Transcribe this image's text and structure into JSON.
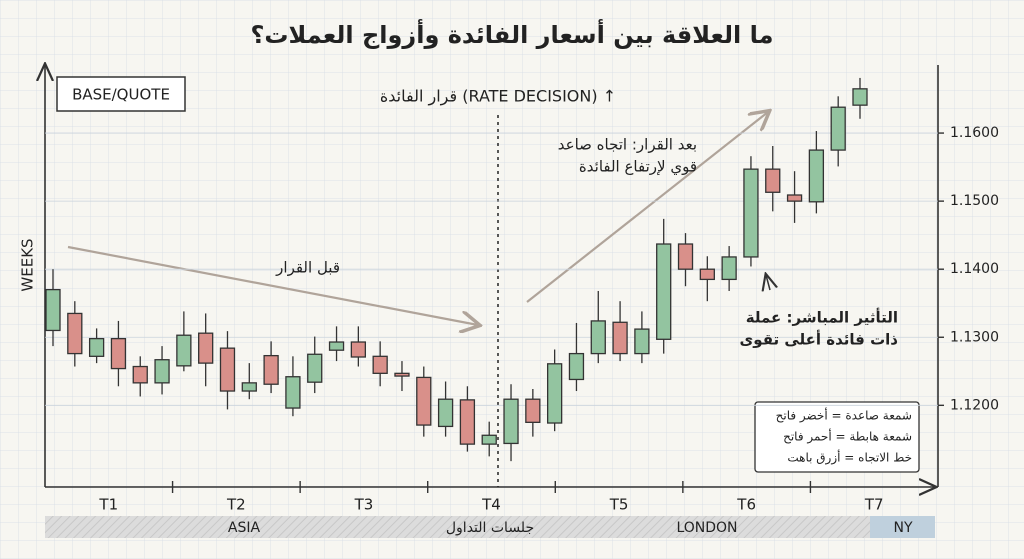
{
  "chart_data": {
    "type": "candlestick",
    "title": "ما العلاقة بين أسعار الفائدة وأزواج العملات؟",
    "pair_label": "BASE/QUOTE",
    "x_axis_label": "WEEKS",
    "decision_label": "قرار الفائدة (RATE DECISION) ↑",
    "annotations": [
      {
        "lines": [
          "قبل القرار"
        ]
      },
      {
        "lines": [
          "بعد القرار: اتجاه صاعد",
          "قوي لإرتفاع الفائدة"
        ]
      },
      {
        "lines": [
          "التأثير المباشر: عملة",
          "ذات فائدة أعلى تقوى"
        ]
      }
    ],
    "legend_lines": [
      "شمعة صاعدة = أخضر فاتح",
      "شمعة هابطة = أحمر فاتح",
      "خط الاتجاه = أزرق باهت"
    ],
    "period_labels": [
      "T1",
      "T2",
      "T3",
      "T4",
      "T5",
      "T6",
      "T7"
    ],
    "sessions": [
      "ASIA",
      "جلسات التداول",
      "LONDON",
      "NY"
    ],
    "up_color": "#93c4a0",
    "down_color": "#d9908a",
    "open": [
      1.131,
      1.1335,
      1.1272,
      1.1298,
      1.1257,
      1.1233,
      1.1258,
      1.1306,
      1.1284,
      1.1221,
      1.1273,
      1.1196,
      1.1234,
      1.1281,
      1.1293,
      1.1272,
      1.1247,
      1.1241,
      1.1169,
      1.1208,
      1.1143,
      1.1144,
      1.1209,
      1.1174,
      1.1238,
      1.1276,
      1.1322,
      1.1276,
      1.1297,
      1.1437,
      1.14,
      1.1385,
      1.1418,
      1.1547,
      1.1509,
      1.1499,
      1.1575,
      1.1641
    ],
    "high": [
      1.14,
      1.1353,
      1.1313,
      1.1324,
      1.1272,
      1.1287,
      1.1338,
      1.1335,
      1.1309,
      1.1262,
      1.1294,
      1.1272,
      1.1301,
      1.1316,
      1.1316,
      1.1294,
      1.1265,
      1.1257,
      1.1235,
      1.1228,
      1.1176,
      1.1231,
      1.1224,
      1.1282,
      1.1321,
      1.1368,
      1.1353,
      1.1338,
      1.1474,
      1.1453,
      1.1419,
      1.1434,
      1.1566,
      1.1581,
      1.1544,
      1.1603,
      1.1654,
      1.1681
    ],
    "low": [
      1.1287,
      1.1257,
      1.1262,
      1.1228,
      1.1213,
      1.1216,
      1.125,
      1.1228,
      1.1194,
      1.1209,
      1.1218,
      1.1184,
      1.1218,
      1.1265,
      1.1257,
      1.1228,
      1.1221,
      1.1154,
      1.1154,
      1.1132,
      1.1125,
      1.1118,
      1.1154,
      1.1162,
      1.1221,
      1.1262,
      1.1265,
      1.1262,
      1.1276,
      1.1375,
      1.1353,
      1.1368,
      1.1404,
      1.1485,
      1.1468,
      1.1482,
      1.1551,
      1.1621
    ],
    "close": [
      1.137,
      1.1276,
      1.1298,
      1.1254,
      1.1233,
      1.1267,
      1.1303,
      1.1262,
      1.1221,
      1.1233,
      1.1231,
      1.1242,
      1.1275,
      1.1293,
      1.1271,
      1.1247,
      1.1243,
      1.1171,
      1.1209,
      1.1143,
      1.1156,
      1.1209,
      1.1175,
      1.1261,
      1.1276,
      1.1324,
      1.1276,
      1.1312,
      1.1437,
      1.14,
      1.1385,
      1.1418,
      1.1547,
      1.1513,
      1.15,
      1.1575,
      1.1638,
      1.1665
    ],
    "ylim": [
      1.108,
      1.17
    ],
    "yticks": [
      {
        "value": 1.12,
        "label": "1.1200"
      },
      {
        "value": 1.13,
        "label": "1.1300"
      },
      {
        "value": 1.14,
        "label": "1.1400"
      },
      {
        "value": 1.15,
        "label": "1.1500"
      },
      {
        "value": 1.16,
        "label": "1.1600"
      }
    ],
    "grid": true
  }
}
